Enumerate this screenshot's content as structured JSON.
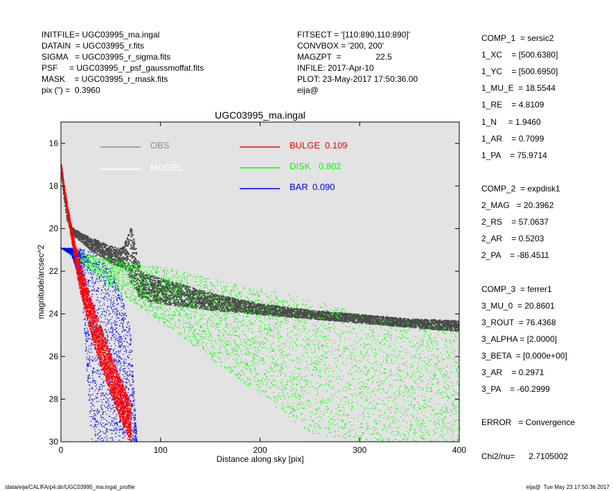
{
  "header": {
    "left": [
      "INITFILE= UGC03995_ma.ingal",
      "DATAIN  = UGC03995_r.fits",
      "SIGMA   = UGC03995_r_sigma.fits",
      "PSF     = UGC03995_r_psf_gaussmoffat.fits",
      "MASK    = UGC03995_r_mask.fits",
      "pix (\") =  0.3960"
    ],
    "mid": [
      "FITSECT = '[110:890,110:890]'",
      "CONVBOX = '200, 200'",
      "MAGZPT  =               22.5",
      "INFILE: 2017-Apr-10",
      "PLOT: 23-May-2017 17:50:36.00",
      "eija@"
    ]
  },
  "components": [
    "COMP_1  = sersic2",
    "1_XC    = [500.6380]",
    "1_YC    = [500.6950]",
    "1_MU_E  = 18.5544",
    "1_RE    = 4.8109",
    "1_N     = 1.9460",
    "1_AR    = 0.7099",
    "1_PA    = 75.9714",
    "",
    "COMP_2  = expdisk1",
    "2_MAG   = 20.3962",
    "2_RS    = 57.0637",
    "2_AR    = 0.5203",
    "2_PA    = -86.4511",
    "",
    "COMP_3  = ferrer1",
    "3_MU_0  = 20.8601",
    "3_ROUT  = 76.4368",
    "3_ALPHA = [2.0000]",
    "3_BETA  = [0.000e+00]",
    "3_AR    = 0.2971",
    "3_PA    = -60.2999",
    "",
    "ERROR   = Convergence",
    "",
    "Chi2/nu=      2.7105002"
  ],
  "footer": {
    "left": "/data/eija/CALIFA/p4.dir/UGC03995_ma.ingal_profile",
    "right": "eija@  Tue May 23 17:50:36 2017"
  },
  "colors": {
    "plot_bg": "#e3e3e3",
    "obs": "#4a4a4a",
    "obs_legend": "#8c8c8c",
    "model": "#ffffff",
    "bulge": "#ff0000",
    "disk": "#00ff00",
    "bar": "#0000ff"
  },
  "chart_data": {
    "type": "scatter",
    "title": "UGC03995_ma.ingal",
    "xlabel": "Distance along sky [pix]",
    "ylabel": "magnitude/arcsec^2",
    "xlim": [
      0,
      400
    ],
    "ylim": [
      30,
      15
    ],
    "y_inverted": true,
    "grid": false,
    "xticks": [
      0,
      100,
      200,
      300,
      400
    ],
    "yticks": [
      16,
      18,
      20,
      22,
      24,
      26,
      28,
      30
    ],
    "legend": {
      "left": [
        {
          "label": "OBS",
          "color": "obs_legend"
        },
        {
          "label": "MODEL",
          "color": "model"
        }
      ],
      "right": [
        {
          "label": "BULGE",
          "value": "0.109",
          "color": "bulge"
        },
        {
          "label": "DISK",
          "value": "0.802",
          "color": "disk"
        },
        {
          "label": "BAR",
          "value": "0.090",
          "color": "bar"
        }
      ]
    },
    "series": [
      {
        "name": "OBS",
        "kind": "band",
        "x": [
          0,
          5,
          10,
          20,
          30,
          40,
          50,
          60,
          65,
          70,
          80,
          100,
          150,
          200,
          250,
          300,
          350,
          400
        ],
        "y_low": [
          17.5,
          19.5,
          20.2,
          20.6,
          21.0,
          21.3,
          21.6,
          21.8,
          21.9,
          22.5,
          23.3,
          23.5,
          23.8,
          24.0,
          24.2,
          24.4,
          24.6,
          24.8
        ],
        "y_high": [
          17.2,
          19.0,
          19.9,
          20.2,
          20.4,
          20.6,
          20.8,
          20.9,
          20.5,
          19.9,
          22.0,
          22.3,
          23.0,
          23.5,
          23.8,
          24.0,
          24.2,
          24.3
        ]
      },
      {
        "name": "BULGE",
        "kind": "band",
        "x": [
          0,
          3,
          6,
          10,
          15,
          20,
          30,
          40,
          50,
          60,
          70
        ],
        "y_low": [
          17.0,
          18.3,
          19.3,
          20.5,
          22.0,
          23.2,
          25.0,
          26.5,
          27.8,
          29.0,
          30.0
        ],
        "y_high": [
          17.0,
          18.0,
          18.8,
          19.8,
          20.9,
          21.8,
          23.3,
          24.6,
          25.9,
          27.1,
          28.2
        ]
      },
      {
        "name": "DISK",
        "kind": "band",
        "x": [
          0,
          50,
          100,
          150,
          200,
          250,
          300,
          350,
          400
        ],
        "y_low": [
          20.9,
          22.7,
          24.4,
          26.1,
          27.8,
          29.6,
          30.0,
          30.0,
          30.0
        ],
        "y_high": [
          20.9,
          21.4,
          21.8,
          22.3,
          22.8,
          23.3,
          23.9,
          24.4,
          24.8
        ]
      },
      {
        "name": "BAR",
        "kind": "band",
        "x": [
          0,
          10,
          20,
          30,
          40,
          50,
          60,
          70,
          76
        ],
        "y_low": [
          20.9,
          21.2,
          22.6,
          30.0,
          30.0,
          30.0,
          30.0,
          30.0,
          30.0
        ],
        "y_high": [
          20.9,
          20.9,
          20.9,
          21.0,
          21.4,
          22.0,
          23.0,
          24.8,
          30.0
        ]
      }
    ]
  }
}
